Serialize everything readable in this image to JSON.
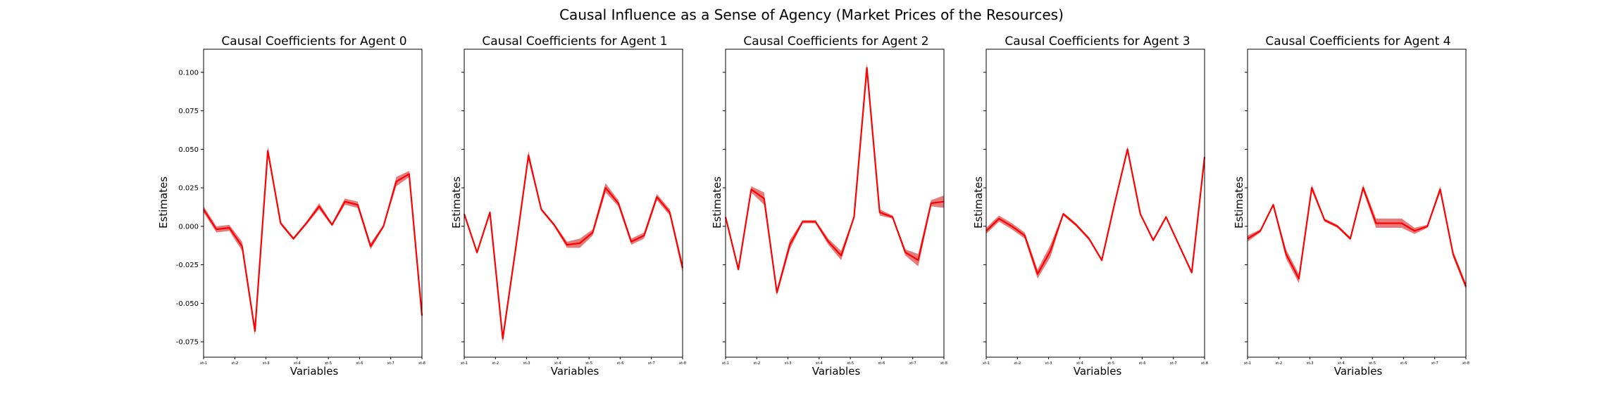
{
  "figure": {
    "title": "Causal Influence as a Sense of Agency (Market Prices of the Resources)"
  },
  "colors": {
    "line": "#ff0000",
    "band": "#e05a5a"
  },
  "chart_data": [
    {
      "type": "line",
      "title": "Causal Coefficients for Agent 0",
      "xlabel": "Variables",
      "ylabel": "Estimates",
      "ylim": [
        -0.085,
        0.115
      ],
      "yticks": [
        "0.100",
        "0.075",
        "0.050",
        "0.025",
        "0.000",
        "-0.025",
        "-0.050",
        "-0.075"
      ],
      "xticks": [
        "xt-1",
        "xt-2",
        "xt-3",
        "xt-4",
        "xt-5",
        "xt-6",
        "xt-7",
        "xt-8"
      ],
      "show_yticks": true,
      "values": [
        0.011,
        -0.002,
        -0.001,
        -0.013,
        -0.068,
        0.049,
        0.002,
        -0.008,
        0.002,
        0.013,
        0.001,
        0.016,
        0.014,
        -0.013,
        0.0,
        0.029,
        0.034,
        -0.058
      ],
      "band": [
        0.002,
        0.002,
        0.002,
        0.003,
        0.003,
        0.003,
        0.001,
        0.001,
        0.001,
        0.002,
        0.001,
        0.002,
        0.002,
        0.002,
        0.001,
        0.003,
        0.002,
        0.002
      ]
    },
    {
      "type": "line",
      "title": "Causal Coefficients for Agent 1",
      "xlabel": "Variables",
      "ylabel": "Estimates",
      "ylim": [
        -0.085,
        0.115
      ],
      "yticks": [],
      "xticks": [
        "xt-1",
        "xt-2",
        "xt-3",
        "xt-4",
        "xt-5",
        "xt-6",
        "xt-7",
        "xt-8"
      ],
      "show_yticks": false,
      "values": [
        0.008,
        -0.017,
        0.009,
        -0.073,
        -0.015,
        0.046,
        0.011,
        0.001,
        -0.012,
        -0.011,
        -0.004,
        0.025,
        0.015,
        -0.01,
        -0.006,
        0.019,
        0.009,
        -0.027
      ],
      "band": [
        0.001,
        0.001,
        0.001,
        0.003,
        0.002,
        0.003,
        0.001,
        0.001,
        0.002,
        0.003,
        0.002,
        0.003,
        0.002,
        0.002,
        0.002,
        0.002,
        0.002,
        0.003
      ]
    },
    {
      "type": "line",
      "title": "Causal Coefficients for Agent 2",
      "xlabel": "Variables",
      "ylabel": "Estimates",
      "ylim": [
        -0.085,
        0.115
      ],
      "yticks": [],
      "xticks": [
        "xt-1",
        "xt-2",
        "xt-3",
        "xt-4",
        "xt-5",
        "xt-6",
        "xt-7",
        "xt-8"
      ],
      "show_yticks": false,
      "values": [
        0.006,
        -0.028,
        0.024,
        0.018,
        -0.043,
        -0.012,
        0.003,
        0.003,
        -0.01,
        -0.019,
        0.006,
        0.103,
        0.009,
        0.006,
        -0.017,
        -0.022,
        0.015,
        0.016
      ],
      "band": [
        0.001,
        0.001,
        0.002,
        0.004,
        0.002,
        0.003,
        0.001,
        0.001,
        0.002,
        0.003,
        0.001,
        0.003,
        0.002,
        0.001,
        0.002,
        0.004,
        0.002,
        0.004
      ]
    },
    {
      "type": "line",
      "title": "Causal Coefficients for Agent 3",
      "xlabel": "Variables",
      "ylabel": "Estimates",
      "ylim": [
        -0.085,
        0.115
      ],
      "yticks": [],
      "xticks": [
        "xt-1",
        "xt-2",
        "xt-3",
        "xt-4",
        "xt-5",
        "xt-6",
        "xt-7",
        "xt-8"
      ],
      "show_yticks": false,
      "values": [
        -0.003,
        0.005,
        0.0,
        -0.006,
        -0.031,
        -0.016,
        0.008,
        0.001,
        -0.008,
        -0.022,
        0.015,
        0.05,
        0.008,
        -0.009,
        0.006,
        -0.012,
        -0.03,
        0.045
      ],
      "band": [
        0.002,
        0.002,
        0.002,
        0.002,
        0.003,
        0.004,
        0.001,
        0.001,
        0.001,
        0.001,
        0.001,
        0.002,
        0.001,
        0.001,
        0.001,
        0.001,
        0.001,
        0.003
      ]
    },
    {
      "type": "line",
      "title": "Causal Coefficients for Agent 4",
      "xlabel": "Variables",
      "ylabel": "Estimates",
      "ylim": [
        -0.085,
        0.115
      ],
      "yticks": [],
      "xticks": [
        "xt-1",
        "xt-2",
        "xt-3",
        "xt-4",
        "xt-5",
        "xt-6",
        "xt-7",
        "xt-8"
      ],
      "show_yticks": false,
      "values": [
        -0.008,
        -0.003,
        0.014,
        -0.018,
        -0.034,
        0.025,
        0.004,
        0.0,
        -0.008,
        0.025,
        0.002,
        0.002,
        0.002,
        -0.003,
        0.0,
        0.024,
        -0.018,
        -0.039
      ],
      "band": [
        0.002,
        0.001,
        0.001,
        0.003,
        0.003,
        0.002,
        0.001,
        0.001,
        0.001,
        0.002,
        0.003,
        0.003,
        0.003,
        0.002,
        0.001,
        0.002,
        0.002,
        0.002
      ]
    }
  ]
}
